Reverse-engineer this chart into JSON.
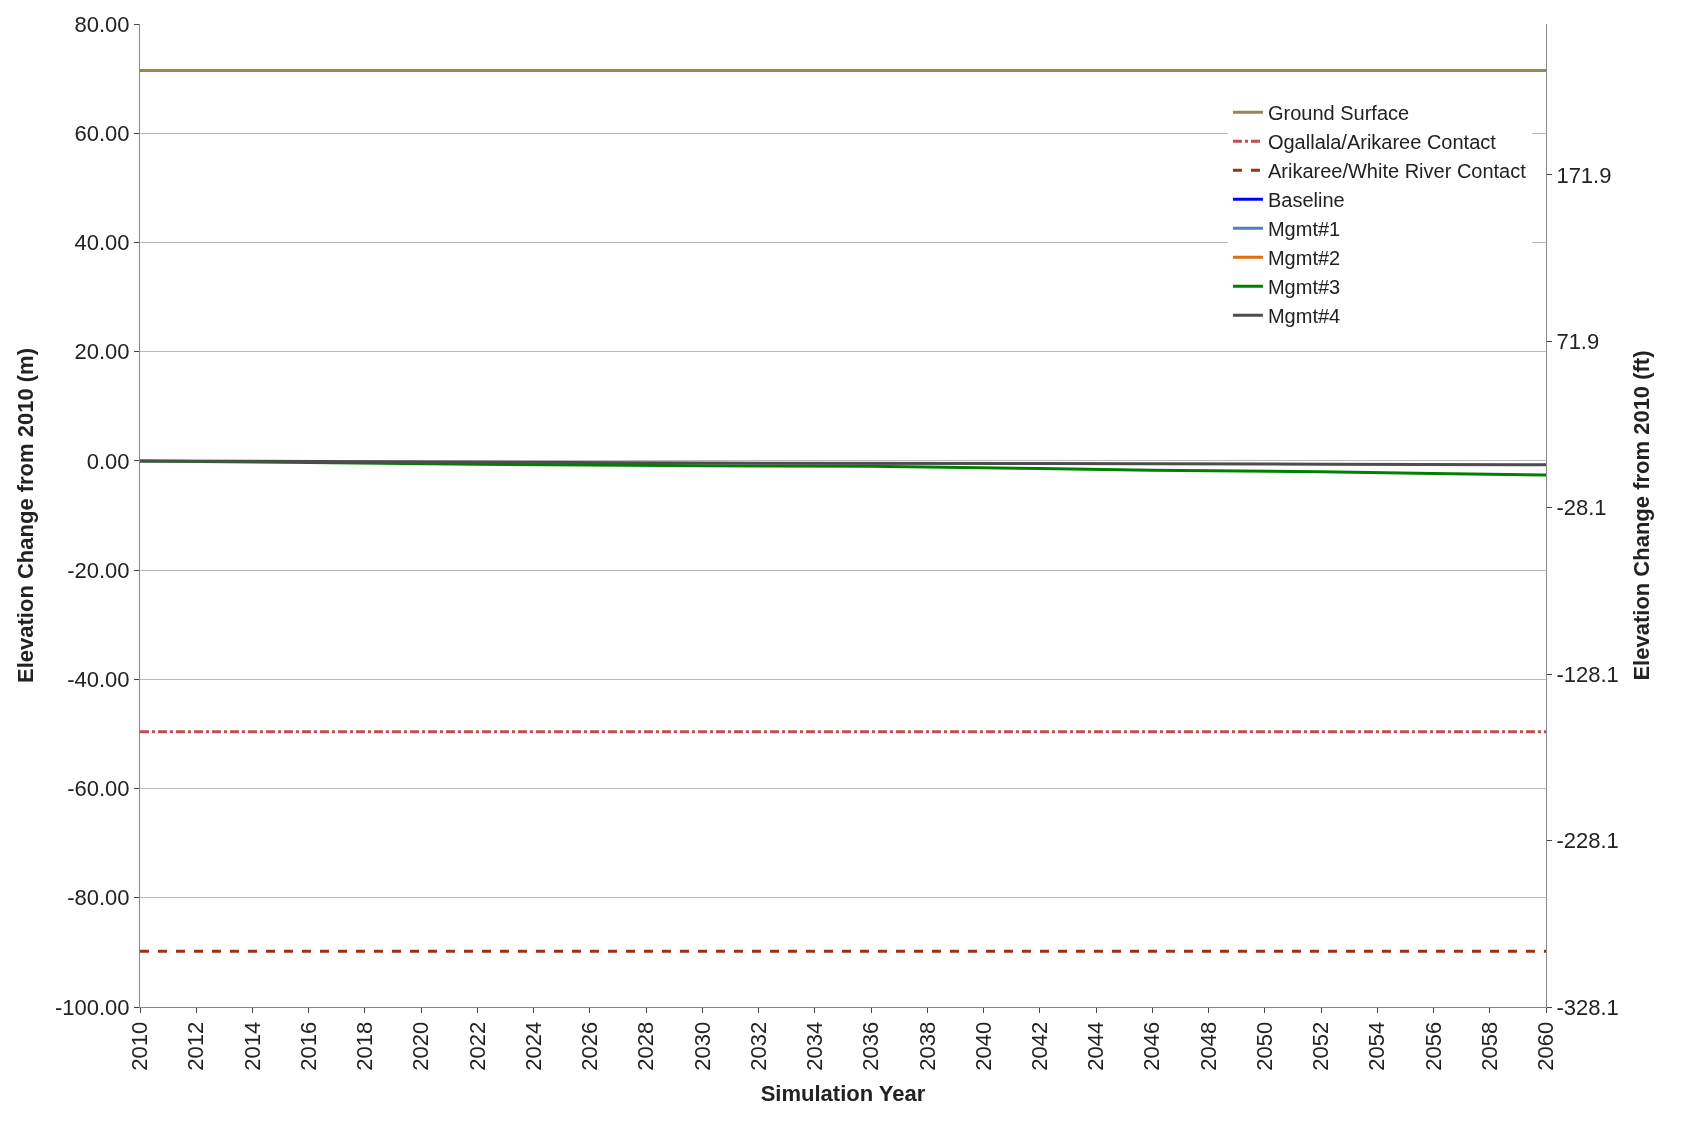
{
  "chart_data": {
    "type": "line",
    "xlabel": "Simulation Year",
    "ylabel": "Elevation Change from 2010 (m)",
    "y2label": "Elevation Change from 2010 (ft)",
    "xlim": [
      2010,
      2060
    ],
    "xticks": [
      2010,
      2012,
      2014,
      2016,
      2018,
      2020,
      2022,
      2024,
      2026,
      2028,
      2030,
      2032,
      2034,
      2036,
      2038,
      2040,
      2042,
      2044,
      2046,
      2048,
      2050,
      2052,
      2054,
      2056,
      2058,
      2060
    ],
    "ylim": [
      -100,
      80
    ],
    "yticks": [
      {
        "value": -100,
        "label": "-100.00"
      },
      {
        "value": -80,
        "label": "-80.00"
      },
      {
        "value": -60,
        "label": "-60.00"
      },
      {
        "value": -40,
        "label": "-40.00"
      },
      {
        "value": -20,
        "label": "-20.00"
      },
      {
        "value": 0,
        "label": "0.00"
      },
      {
        "value": 20,
        "label": "20.00"
      },
      {
        "value": 40,
        "label": "40.00"
      },
      {
        "value": 60,
        "label": "60.00"
      },
      {
        "value": 80,
        "label": "80.00"
      }
    ],
    "y2lim": [
      -328.1,
      262.5
    ],
    "y2ticks": [
      -328.1,
      -228.1,
      -128.1,
      -28.1,
      71.9,
      171.9
    ],
    "grid": "y",
    "legend": "top right",
    "marker": "none",
    "series": [
      {
        "name": "Ground Surface",
        "color": "#948a54",
        "line_style": "solid",
        "x": [
          2010,
          2060
        ],
        "values": [
          71.5,
          71.5
        ]
      },
      {
        "name": "Ogallala/Arikaree Contact",
        "color": "#c0504d",
        "line_style": "dashdot",
        "x": [
          2010,
          2060
        ],
        "values": [
          -49.6,
          -49.6
        ]
      },
      {
        "name": "Arikaree/White River Contact",
        "color": "#953416",
        "line_style": "dashed",
        "x": [
          2010,
          2060
        ],
        "values": [
          -89.8,
          -89.8
        ]
      },
      {
        "name": "Baseline",
        "color": "#0000ff",
        "line_style": "solid"
      },
      {
        "name": "Mgmt#1",
        "color": "#4f81bd",
        "line_style": "solid"
      },
      {
        "name": "Mgmt#2",
        "color": "#e46c0a",
        "line_style": "solid"
      },
      {
        "name": "Mgmt#3",
        "color": "#008000",
        "line_style": "solid",
        "x": [
          2010,
          2016,
          2022,
          2030,
          2036,
          2042,
          2046,
          2052,
          2056,
          2060
        ],
        "values": [
          0,
          -0.3,
          -0.6,
          -0.9,
          -1.0,
          -1.4,
          -1.7,
          -2.0,
          -2.3,
          -2.6
        ]
      },
      {
        "name": "Mgmt#4",
        "color": "#4d4d4d",
        "line_style": "solid",
        "x": [
          2010,
          2030,
          2042,
          2052,
          2060
        ],
        "values": [
          0,
          -0.4,
          -0.5,
          -0.6,
          -0.7
        ]
      }
    ]
  }
}
